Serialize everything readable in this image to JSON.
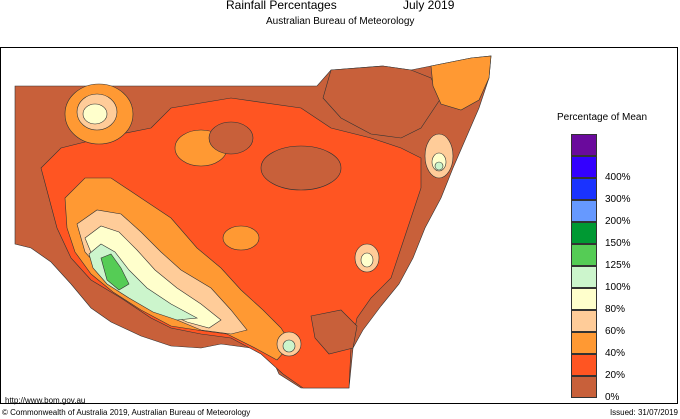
{
  "header": {
    "title": "Rainfall Percentages",
    "period": "July 2019",
    "subtitle": "Australian Bureau of Meteorology"
  },
  "legend": {
    "title": "Percentage of Mean",
    "items": [
      {
        "label": "",
        "color": "#6a0a9c"
      },
      {
        "label": "400%",
        "color": "#3300ff"
      },
      {
        "label": "300%",
        "color": "#1a33ff"
      },
      {
        "label": "200%",
        "color": "#6699ff"
      },
      {
        "label": "150%",
        "color": "#009933"
      },
      {
        "label": "125%",
        "color": "#55cc55"
      },
      {
        "label": "100%",
        "color": "#ccf5cc"
      },
      {
        "label": "80%",
        "color": "#ffffcc"
      },
      {
        "label": "60%",
        "color": "#ffcc99"
      },
      {
        "label": "40%",
        "color": "#ff9933"
      },
      {
        "label": "20%",
        "color": "#ff5522"
      },
      {
        "label": "0%",
        "color": "#c8603a"
      }
    ]
  },
  "map": {
    "url_text": "http://www.bom.gov.au",
    "colors": {
      "dark": "#c8603a",
      "red": "#ff5522",
      "orange": "#ff9933",
      "peach": "#ffcc99",
      "cream": "#ffffcc",
      "mint": "#ccf5cc",
      "green": "#55cc55"
    }
  },
  "footer": {
    "copyright": "© Commonwealth of Australia 2019, Australian Bureau of Meteorology",
    "issued": "Issued: 31/07/2019"
  }
}
